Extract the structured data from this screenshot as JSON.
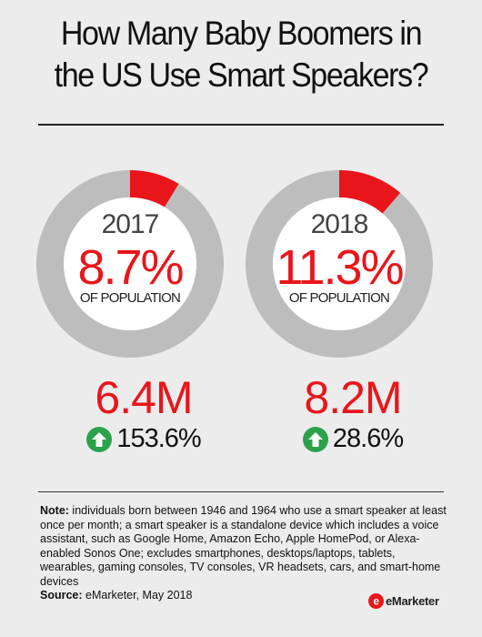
{
  "title_line1": "How Many Baby Boomers in",
  "title_line2": "the US Use Smart Speakers?",
  "colors": {
    "accent": "#e8161b",
    "ring": "#bdbdbd",
    "up": "#2ca24b"
  },
  "chart_data": [
    {
      "type": "pie",
      "year": "2017",
      "percent_label": "8.7%",
      "values": [
        8.7,
        91.3
      ],
      "caption": "OF POPULATION",
      "users": "6.4M",
      "growth": "153.6%",
      "growth_icon": "up-arrow-icon"
    },
    {
      "type": "pie",
      "year": "2018",
      "percent_label": "11.3%",
      "values": [
        11.3,
        88.7
      ],
      "caption": "OF POPULATION",
      "users": "8.2M",
      "growth": "28.6%",
      "growth_icon": "up-arrow-icon"
    }
  ],
  "note_label": "Note:",
  "note_text": " individuals born between 1946 and 1964 who use a smart speaker at least once per month; a smart speaker is a standalone device which includes a voice assistant, such as Google Home, Amazon Echo, Apple HomePod, or Alexa-enabled Sonos One; excludes smartphones, desktops/laptops, tablets, wearables, gaming consoles, TV consoles, VR headsets, cars, and smart-home devices",
  "source_label": "Source:",
  "source_text": " eMarketer, May 2018",
  "logo_text": "eMarketer"
}
